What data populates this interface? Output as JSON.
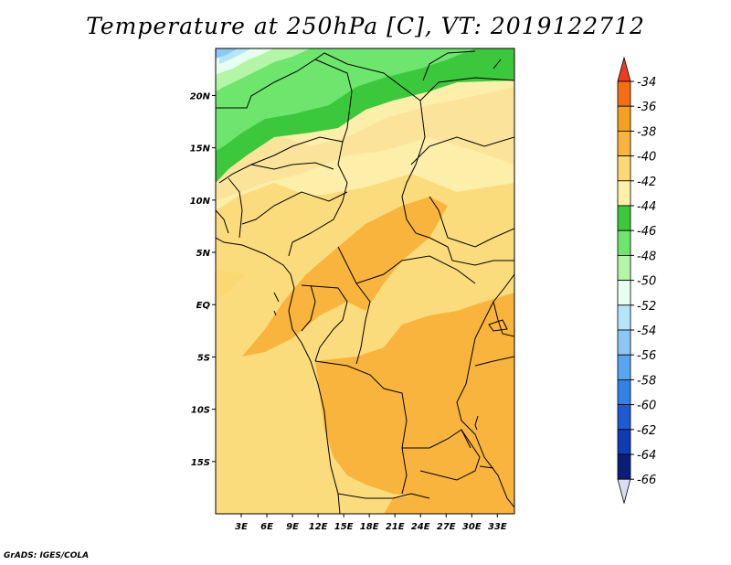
{
  "title": "Temperature at 250hPa [C], VT: 2019122712",
  "credit": "GrADS: IGES/COLA",
  "map": {
    "lon_labels": [
      "3E",
      "6E",
      "9E",
      "12E",
      "15E",
      "18E",
      "21E",
      "24E",
      "27E",
      "30E",
      "33E"
    ],
    "lat_labels": [
      "20N",
      "15N",
      "10N",
      "5N",
      "EQ",
      "5S",
      "10S",
      "15S"
    ],
    "extent": {
      "lon_min": 0,
      "lon_max": 35,
      "lat_min": -20,
      "lat_max": 24.5
    }
  },
  "colorbar": {
    "labels": [
      "-34",
      "-36",
      "-38",
      "-40",
      "-42",
      "-44",
      "-46",
      "-48",
      "-50",
      "-52",
      "-54",
      "-56",
      "-58",
      "-60",
      "-62",
      "-64",
      "-66"
    ],
    "colors": [
      "#f03c1e",
      "#f56e14",
      "#f5a01e",
      "#f8b43c",
      "#fbd872",
      "#fdf0a8",
      "#3cc83c",
      "#6ee66e",
      "#b4f5a8",
      "#e6fff0",
      "#b4e6fa",
      "#8cc8f5",
      "#5aa5f0",
      "#3282e6",
      "#1e5ad2",
      "#0f3cb4",
      "#0a1e78",
      "#dcdcf0"
    ]
  }
}
